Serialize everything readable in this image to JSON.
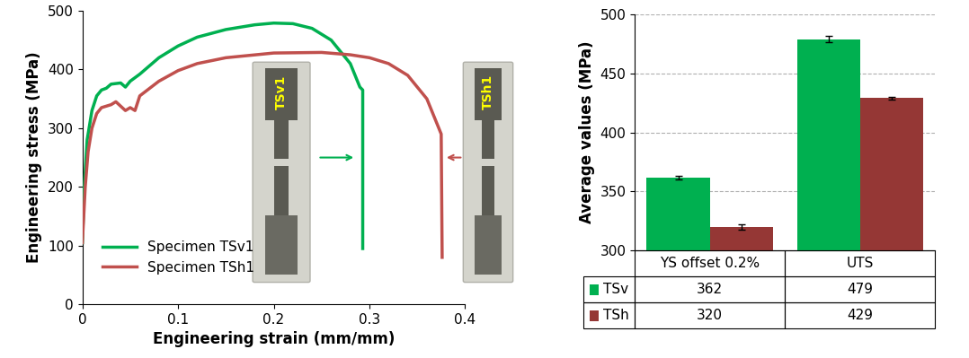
{
  "chart_data": [
    {
      "type": "line",
      "xlabel": "Engineering strain (mm/mm)",
      "ylabel": "Engineering stress (MPa)",
      "xlim": [
        0,
        0.4
      ],
      "xticks": [
        0,
        0.1,
        0.2,
        0.3,
        0.4
      ],
      "ylim": [
        0,
        500
      ],
      "yticks": [
        0,
        100,
        200,
        300,
        400,
        500
      ],
      "grid": false,
      "legend": "lower left",
      "annotations": [
        "TSv1",
        "TSh1"
      ],
      "series": [
        {
          "name": "Specimen TSv1",
          "color": "#00b050",
          "x": [
            0,
            0.002,
            0.005,
            0.01,
            0.015,
            0.02,
            0.025,
            0.03,
            0.04,
            0.045,
            0.05,
            0.06,
            0.08,
            0.1,
            0.12,
            0.15,
            0.18,
            0.2,
            0.22,
            0.24,
            0.26,
            0.28,
            0.29,
            0.293,
            0.293
          ],
          "values": [
            105,
            200,
            280,
            330,
            355,
            365,
            368,
            375,
            377,
            370,
            380,
            392,
            420,
            440,
            455,
            468,
            476,
            479,
            478,
            470,
            450,
            410,
            370,
            365,
            95
          ]
        },
        {
          "name": "Specimen TSh1",
          "color": "#c0504d",
          "x": [
            0,
            0.003,
            0.006,
            0.01,
            0.015,
            0.02,
            0.03,
            0.035,
            0.045,
            0.05,
            0.055,
            0.06,
            0.08,
            0.1,
            0.12,
            0.15,
            0.2,
            0.25,
            0.28,
            0.3,
            0.32,
            0.34,
            0.36,
            0.375,
            0.376
          ],
          "values": [
            105,
            200,
            260,
            300,
            325,
            335,
            340,
            345,
            330,
            335,
            330,
            355,
            380,
            398,
            410,
            420,
            428,
            429,
            425,
            420,
            410,
            390,
            350,
            290,
            80
          ]
        }
      ]
    },
    {
      "type": "bar",
      "ylabel": "Average values (MPa)",
      "categories": [
        "YS offset 0.2%",
        "UTS"
      ],
      "ylim": [
        300,
        500
      ],
      "yticks": [
        300,
        350,
        400,
        450,
        500
      ],
      "grid": true,
      "series": [
        {
          "name": "TSv",
          "color": "#00b050",
          "values": [
            362,
            479
          ],
          "errors": [
            1.5,
            2.5
          ]
        },
        {
          "name": "TSh",
          "color": "#953735",
          "values": [
            320,
            429
          ],
          "errors": [
            2.5,
            1.0
          ]
        }
      ]
    }
  ]
}
